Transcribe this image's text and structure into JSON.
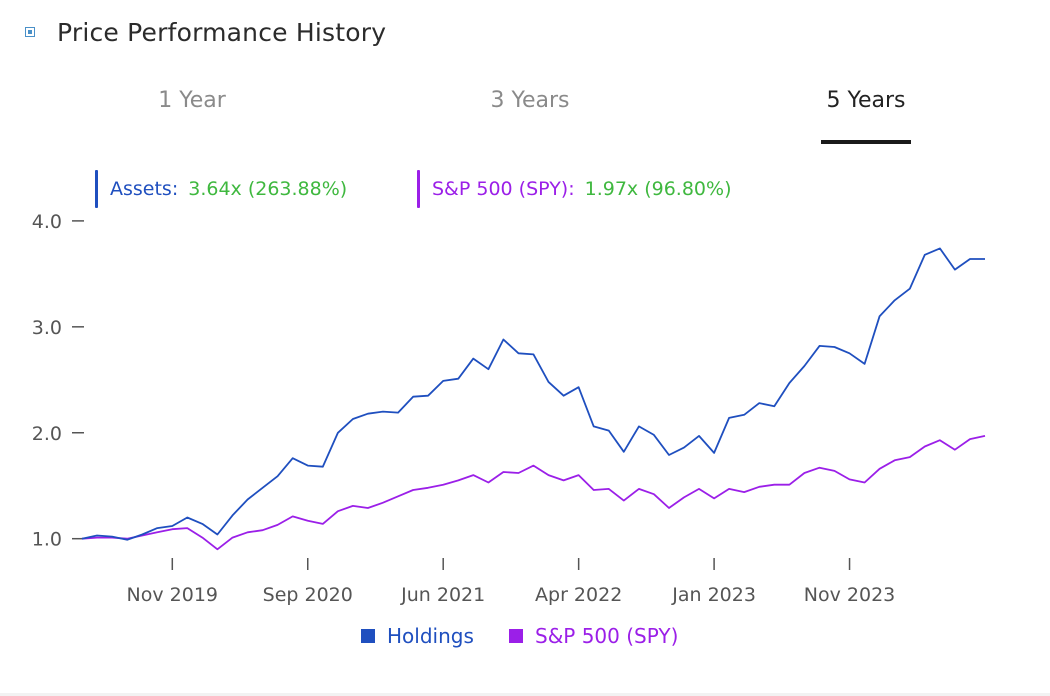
{
  "header": {
    "title": "Price Performance History",
    "icon": "chart-box-icon"
  },
  "tabs": [
    {
      "label": "1 Year",
      "active": false
    },
    {
      "label": "3 Years",
      "active": false
    },
    {
      "label": "5 Years",
      "active": true
    }
  ],
  "summary": {
    "assets": {
      "label": "Assets:",
      "value": "3.64x (263.88%)",
      "color": "#1f4fbf"
    },
    "spy": {
      "label": "S&P 500 (SPY):",
      "value": "1.97x (96.80%)",
      "color": "#9b1fe8"
    },
    "value_color": "#3fb83f"
  },
  "legend": [
    {
      "label": "Holdings",
      "color": "#1f4fbf"
    },
    {
      "label": "S&P 500 (SPY)",
      "color": "#9b1fe8"
    }
  ],
  "chart_data": {
    "type": "line",
    "x_ticks": [
      "Nov 2019",
      "Sep 2020",
      "Jun 2021",
      "Apr 2022",
      "Jan 2023",
      "Nov 2023"
    ],
    "y_ticks": [
      "1.0",
      "2.0",
      "3.0",
      "4.0"
    ],
    "ylim": [
      0.78,
      4.15
    ],
    "x_range_months": [
      "2019-05",
      "2024-05"
    ],
    "series": [
      {
        "name": "Holdings",
        "color": "#1f4fbf",
        "values": [
          1.0,
          1.03,
          1.02,
          0.99,
          1.04,
          1.1,
          1.12,
          1.2,
          1.14,
          1.04,
          1.22,
          1.37,
          1.48,
          1.59,
          1.76,
          1.69,
          1.68,
          2.0,
          2.13,
          2.18,
          2.2,
          2.19,
          2.34,
          2.35,
          2.49,
          2.51,
          2.7,
          2.6,
          2.88,
          2.75,
          2.74,
          2.48,
          2.35,
          2.43,
          2.06,
          2.02,
          1.82,
          2.06,
          1.98,
          1.79,
          1.86,
          1.97,
          1.81,
          2.14,
          2.17,
          2.28,
          2.25,
          2.47,
          2.63,
          2.82,
          2.81,
          2.75,
          2.65,
          3.1,
          3.25,
          3.36,
          3.68,
          3.74,
          3.54,
          3.64,
          3.64
        ]
      },
      {
        "name": "S&P 500 (SPY)",
        "color": "#9b1fe8",
        "values": [
          1.0,
          1.01,
          1.01,
          1.0,
          1.03,
          1.06,
          1.09,
          1.1,
          1.01,
          0.9,
          1.01,
          1.06,
          1.08,
          1.13,
          1.21,
          1.17,
          1.14,
          1.26,
          1.31,
          1.29,
          1.34,
          1.4,
          1.46,
          1.48,
          1.51,
          1.55,
          1.6,
          1.53,
          1.63,
          1.62,
          1.69,
          1.6,
          1.55,
          1.6,
          1.46,
          1.47,
          1.36,
          1.47,
          1.42,
          1.29,
          1.39,
          1.47,
          1.38,
          1.47,
          1.44,
          1.49,
          1.51,
          1.51,
          1.62,
          1.67,
          1.64,
          1.56,
          1.53,
          1.66,
          1.74,
          1.77,
          1.87,
          1.93,
          1.84,
          1.94,
          1.97
        ]
      }
    ]
  }
}
